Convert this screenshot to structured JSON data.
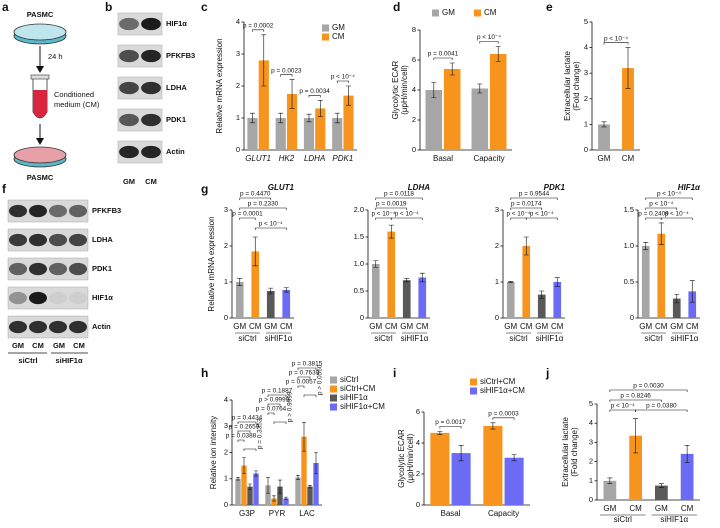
{
  "figure": {
    "a": {
      "panel": "a",
      "top_cell": "PASMC",
      "time": "24 h",
      "medium": [
        "Conditioned",
        "medium (CM)"
      ],
      "bottom_cell": "PASMC"
    },
    "b": {
      "panel": "b",
      "proteins": [
        "HIF1α",
        "PFKFB3",
        "LDHA",
        "PDK1",
        "Actin"
      ],
      "lanes": [
        "GM",
        "CM"
      ]
    },
    "f": {
      "panel": "f",
      "proteins": [
        "PFKFB3",
        "LDHA",
        "PDK1",
        "HIF1α",
        "Actin"
      ],
      "lanes": [
        "GM",
        "CM",
        "GM",
        "CM"
      ],
      "groups": [
        "siCtrl",
        "siHIF1α"
      ]
    }
  },
  "chart_data": [
    {
      "panel": "c",
      "type": "bar",
      "ylabel": "Relative mRNA expression",
      "categories": [
        "GLUT1",
        "HK2",
        "LDHA",
        "PDK1"
      ],
      "series": [
        {
          "name": "GM",
          "color": "#a6a6a6",
          "values": [
            1.0,
            1.0,
            1.0,
            1.0
          ],
          "errors": [
            0.15,
            0.15,
            0.12,
            0.15
          ]
        },
        {
          "name": "CM",
          "color": "#f7941d",
          "values": [
            2.8,
            1.75,
            1.3,
            1.7
          ],
          "errors": [
            0.8,
            0.45,
            0.25,
            0.3
          ]
        }
      ],
      "ylim": [
        0,
        4
      ],
      "yticks": [
        0,
        1,
        2,
        3,
        4
      ],
      "annotations": [
        "p = 0.0002",
        "p = 0.0023",
        "p = 0.0034",
        "p < 10⁻⁴"
      ]
    },
    {
      "panel": "d",
      "type": "bar",
      "ylabel": [
        "Glycolytic ECAR",
        "(μpH/min/cell)"
      ],
      "categories": [
        "Basal",
        "Capacity"
      ],
      "series": [
        {
          "name": "GM",
          "color": "#a6a6a6",
          "values": [
            4.0,
            4.1
          ],
          "errors": [
            0.5,
            0.3
          ]
        },
        {
          "name": "CM",
          "color": "#f7941d",
          "values": [
            5.4,
            6.4
          ],
          "errors": [
            0.4,
            0.5
          ]
        }
      ],
      "ylim": [
        0,
        8
      ],
      "yticks": [
        0,
        2,
        4,
        6,
        8
      ],
      "annotations": [
        "p = 0.0041",
        "p < 10⁻⁴"
      ]
    },
    {
      "panel": "e",
      "type": "bar",
      "ylabel": [
        "Extracellular lactate",
        "(Fold change)"
      ],
      "categories": [
        "GM",
        "CM"
      ],
      "values": [
        1.0,
        3.2
      ],
      "errors": [
        0.1,
        0.8
      ],
      "colors": [
        "#a6a6a6",
        "#f7941d"
      ],
      "ylim": [
        0,
        5
      ],
      "yticks": [
        0,
        1,
        2,
        3,
        4,
        5
      ],
      "annotations": [
        "p < 10⁻⁴"
      ]
    },
    {
      "panel": "g",
      "type": "bar",
      "title": "GLUT1",
      "ylabel": "Relative mRNA expression",
      "categories": [
        "GM",
        "CM",
        "GM",
        "CM"
      ],
      "group_labels": [
        "siCtrl",
        "siHIF1α"
      ],
      "values": [
        1.0,
        1.85,
        0.75,
        0.78
      ],
      "errors": [
        0.1,
        0.4,
        0.08,
        0.06
      ],
      "colors": [
        "#a6a6a6",
        "#f7941d",
        "#595959",
        "#6b6bf5"
      ],
      "ylim": [
        0,
        3
      ],
      "yticks": [
        0,
        1,
        2,
        3
      ],
      "annotations": [
        "p = 0.4470",
        "p = 0.2330",
        "p = 0.0001",
        "p < 10⁻⁴"
      ]
    },
    {
      "type": "bar",
      "title": "LDHA",
      "categories": [
        "GM",
        "CM",
        "GM",
        "CM"
      ],
      "group_labels": [
        "siCtrl",
        "siHIF1α"
      ],
      "values": [
        1.0,
        1.6,
        0.7,
        0.75
      ],
      "errors": [
        0.06,
        0.12,
        0.03,
        0.08
      ],
      "colors": [
        "#a6a6a6",
        "#f7941d",
        "#595959",
        "#6b6bf5"
      ],
      "ylim": [
        0,
        2
      ],
      "yticks": [
        0,
        0.5,
        {
          "value": 1,
          "label": "1.0"
        },
        1.5,
        {
          "value": 2,
          "label": "2.0"
        }
      ],
      "annotations": [
        "p = 0.0118",
        "p = 0.0019",
        "p < 10⁻⁴",
        "p < 10⁻⁴"
      ]
    },
    {
      "type": "bar",
      "title": "PDK1",
      "categories": [
        "GM",
        "CM",
        "GM",
        "CM"
      ],
      "group_labels": [
        "siCtrl",
        "siHIF1α"
      ],
      "values": [
        1.0,
        2.0,
        0.65,
        1.0
      ],
      "errors": [
        0.02,
        0.25,
        0.1,
        0.12
      ],
      "colors": [
        "#a6a6a6",
        "#f7941d",
        "#595959",
        "#6b6bf5"
      ],
      "ylim": [
        0,
        3
      ],
      "yticks": [
        0,
        1,
        2,
        3
      ],
      "annotations": [
        "p = 0.9544",
        "p = 0.0174",
        "p < 10⁻⁴",
        "p < 10⁻⁴"
      ]
    },
    {
      "type": "bar",
      "title": "HIF1α",
      "categories": [
        "GM",
        "CM",
        "GM",
        "CM"
      ],
      "group_labels": [
        "siCtrl",
        "siHIF1α"
      ],
      "values": [
        1.0,
        1.17,
        0.27,
        0.37
      ],
      "errors": [
        0.05,
        0.15,
        0.06,
        0.15
      ],
      "colors": [
        "#a6a6a6",
        "#f7941d",
        "#595959",
        "#6b6bf5"
      ],
      "ylim": [
        0,
        1.5
      ],
      "yticks": [
        0,
        0.5,
        {
          "value": 1,
          "label": "1.0"
        },
        1.5
      ],
      "annotations": [
        "p < 10⁻⁴",
        "p < 10⁻⁴",
        "p = 0.2409",
        "p < 10⁻⁴"
      ]
    },
    {
      "panel": "h",
      "type": "bar",
      "ylabel": "Relative ion intensity",
      "categories": [
        "G3P",
        "PYR",
        "LAC"
      ],
      "series": [
        {
          "name": "siCtrl",
          "color": "#a6a6a6",
          "values": [
            1.0,
            0.75,
            1.05
          ],
          "errors": [
            0.05,
            0.3,
            0.08
          ]
        },
        {
          "name": "siCtrl+CM",
          "color": "#f7941d",
          "values": [
            1.5,
            0.25,
            2.6
          ],
          "errors": [
            0.3,
            0.1,
            0.55
          ]
        },
        {
          "name": "siHIF1α",
          "color": "#595959",
          "values": [
            0.7,
            0.7,
            0.7
          ],
          "errors": [
            0.1,
            0.25,
            0.05
          ]
        },
        {
          "name": "siHIF1α+CM",
          "color": "#6b6bf5",
          "values": [
            1.2,
            0.25,
            1.6
          ],
          "errors": [
            0.1,
            0.05,
            0.4
          ]
        }
      ],
      "ylim": [
        0,
        4
      ],
      "yticks": [
        0,
        1,
        2,
        3,
        4
      ],
      "annotations": [
        "p = 0.4434",
        "p = 0.2659",
        "p = 0.0388",
        "p = 0.3353",
        "p = 0.1887",
        "p > 0.9999",
        "p = 0.0764",
        "p > 0.9999",
        "p = 0.3815",
        "p = 0.7639",
        "p = 0.0057",
        "p > 0.0560"
      ]
    },
    {
      "panel": "i",
      "type": "bar",
      "ylabel": [
        "Glycolytic ECAR",
        "(μpH/min/cell)"
      ],
      "categories": [
        "Basal",
        "Capacity"
      ],
      "series": [
        {
          "name": "siCtrl+CM",
          "color": "#f7941d",
          "values": [
            4.65,
            5.1
          ],
          "errors": [
            0.1,
            0.2
          ]
        },
        {
          "name": "siHIF1α+CM",
          "color": "#6b6bf5",
          "values": [
            3.35,
            3.05
          ],
          "errors": [
            0.5,
            0.2
          ]
        }
      ],
      "ylim": [
        0,
        6
      ],
      "yticks": [
        0,
        2,
        4,
        6
      ],
      "annotations": [
        "p = 0.0017",
        "p = 0.0003"
      ]
    },
    {
      "panel": "j",
      "type": "bar",
      "ylabel": [
        "Extracellular lactate",
        "(Fold change)"
      ],
      "categories": [
        "GM",
        "CM",
        "GM",
        "CM"
      ],
      "group_labels": [
        "siCtrl",
        "siHIF1α"
      ],
      "values": [
        1.0,
        3.35,
        0.75,
        2.4
      ],
      "errors": [
        0.15,
        0.9,
        0.1,
        0.45
      ],
      "colors": [
        "#a6a6a6",
        "#f7941d",
        "#595959",
        "#6b6bf5"
      ],
      "ylim": [
        0,
        5
      ],
      "yticks": [
        0,
        1,
        2,
        3,
        4,
        5
      ],
      "annotations": [
        "p = 0.0030",
        "p = 0.8246",
        "p < 10⁻⁴",
        "p = 0.0380"
      ]
    }
  ]
}
